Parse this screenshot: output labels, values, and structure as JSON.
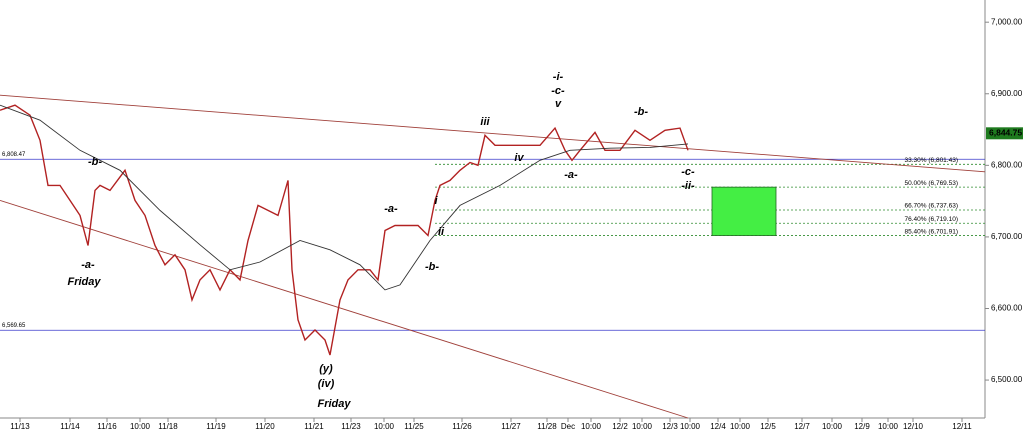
{
  "chart_data": {
    "type": "line",
    "xlim": [
      0,
      985
    ],
    "ylim": [
      6447,
      7031
    ],
    "xticks": [
      {
        "value": 20,
        "label": "11/13"
      },
      {
        "value": 70,
        "label": "11/14"
      },
      {
        "value": 107,
        "label": "11/16"
      },
      {
        "value": 140,
        "label": "10:00"
      },
      {
        "value": 168,
        "label": "11/18"
      },
      {
        "value": 216,
        "label": "11/19"
      },
      {
        "value": 265,
        "label": "11/20"
      },
      {
        "value": 314,
        "label": "11/21"
      },
      {
        "value": 351,
        "label": "11/23"
      },
      {
        "value": 384,
        "label": "10:00"
      },
      {
        "value": 414,
        "label": "11/25"
      },
      {
        "value": 462,
        "label": "11/26"
      },
      {
        "value": 511,
        "label": "11/27"
      },
      {
        "value": 547,
        "label": "11/28"
      },
      {
        "value": 568,
        "label": "Dec"
      },
      {
        "value": 591,
        "label": "10:00"
      },
      {
        "value": 620,
        "label": "12/2"
      },
      {
        "value": 642,
        "label": "10:00"
      },
      {
        "value": 670,
        "label": "12/3"
      },
      {
        "value": 690,
        "label": "10:00"
      },
      {
        "value": 718,
        "label": "12/4"
      },
      {
        "value": 740,
        "label": "10:00"
      },
      {
        "value": 768,
        "label": "12/5"
      },
      {
        "value": 802,
        "label": "12/7"
      },
      {
        "value": 832,
        "label": "10:00"
      },
      {
        "value": 862,
        "label": "12/9"
      },
      {
        "value": 888,
        "label": "10:00"
      },
      {
        "value": 913,
        "label": "12/10"
      },
      {
        "value": 962,
        "label": "12/11"
      }
    ],
    "yticks": [
      {
        "value": 6500,
        "label": "6,500.00"
      },
      {
        "value": 6600,
        "label": "6,600.00"
      },
      {
        "value": 6700,
        "label": "6,700.00"
      },
      {
        "value": 6800,
        "label": "6,800.00"
      },
      {
        "value": 6900,
        "label": "6,900.00"
      },
      {
        "value": 7000,
        "label": "7,000.00"
      }
    ],
    "series": [
      {
        "color": "#b22222",
        "x": [
          0,
          15,
          30,
          40,
          48,
          60,
          70,
          80,
          88,
          95,
          100,
          110,
          125,
          135,
          145,
          155,
          165,
          175,
          185,
          192,
          200,
          210,
          220,
          230,
          240,
          248,
          258,
          268,
          278,
          288,
          292,
          298,
          305,
          315,
          325,
          330,
          340,
          348,
          358,
          370,
          378,
          385,
          395,
          405,
          418,
          428,
          435,
          440,
          450,
          460,
          470,
          478,
          485,
          495,
          510,
          525,
          540,
          555,
          565,
          572,
          580,
          595,
          605,
          620,
          635,
          650,
          665,
          680,
          688
        ],
        "values": [
          6877,
          6884,
          6870,
          6835,
          6772,
          6772,
          6751,
          6730,
          6688,
          6765,
          6772,
          6765,
          6793,
          6751,
          6730,
          6688,
          6661,
          6675,
          6654,
          6612,
          6640,
          6654,
          6626,
          6654,
          6640,
          6695,
          6744,
          6737,
          6730,
          6779,
          6654,
          6584,
          6556,
          6570,
          6556,
          6535,
          6612,
          6640,
          6654,
          6654,
          6640,
          6709,
          6716,
          6716,
          6716,
          6702,
          6751,
          6772,
          6779,
          6793,
          6804,
          6800,
          6842,
          6828,
          6828,
          6828,
          6828,
          6852,
          6821,
          6807,
          6821,
          6846,
          6821,
          6821,
          6849,
          6835,
          6849,
          6852,
          6821
        ]
      },
      {
        "color": "#333333",
        "x": [
          0,
          40,
          80,
          120,
          160,
          200,
          230,
          260,
          300,
          330,
          360,
          385,
          400,
          430,
          460,
          500,
          540,
          570,
          610,
          650,
          688
        ],
        "values": [
          6884,
          6863,
          6821,
          6793,
          6737,
          6689,
          6654,
          6665,
          6695,
          6682,
          6661,
          6626,
          6633,
          6695,
          6744,
          6772,
          6807,
          6821,
          6824,
          6825,
          6830
        ]
      }
    ],
    "trendlines": [
      {
        "color": "#a0403a",
        "x": [
          0,
          985
        ],
        "y": [
          6898,
          6791
        ]
      },
      {
        "color": "#a0403a",
        "x": [
          0,
          688
        ],
        "y": [
          6751,
          6447
        ]
      }
    ],
    "levels": [
      {
        "value": 6808.47,
        "label": "6,808.47",
        "color": "#3a3acc"
      },
      {
        "value": 6569.65,
        "label": "6,569.65",
        "color": "#3a3acc"
      }
    ],
    "fib_levels": [
      {
        "value": 6801.43,
        "label": "33.30% (6,801.43)"
      },
      {
        "value": 6769.53,
        "label": "50.00% (6,769.53)"
      },
      {
        "value": 6737.63,
        "label": "66.70% (6,737.63)"
      },
      {
        "value": 6719.1,
        "label": "76.40% (6,719.10)"
      },
      {
        "value": 6701.91,
        "label": "85.40% (6,701.91)"
      }
    ],
    "fib_color": "#2e8b2e",
    "zone_color": "#44ee44",
    "last_price": {
      "value": 6844.75,
      "label": "6,844.75",
      "color": "#1e7a1e"
    },
    "annotations": [
      {
        "text": "-b-",
        "color": "#b22222"
      },
      {
        "text": "-a-",
        "color": "#b22222"
      },
      {
        "text": "Friday",
        "color": "#1a237e"
      },
      {
        "text": "(y)",
        "color": "#b22222"
      },
      {
        "text": "(iv)",
        "color": "#1a237e"
      },
      {
        "text": "Friday",
        "color": "#1a237e"
      },
      {
        "text": "-a-",
        "color": "#1a237e"
      },
      {
        "text": "-b-",
        "color": "#1a237e"
      },
      {
        "text": "i",
        "color": "#1a237e"
      },
      {
        "text": "ii",
        "color": "#1a237e"
      },
      {
        "text": "iii",
        "color": "#1a237e"
      },
      {
        "text": "iv",
        "color": "#1a237e"
      },
      {
        "text": "-i-",
        "color": "#1a237e"
      },
      {
        "text": "-c-",
        "color": "#1a237e"
      },
      {
        "text": "v",
        "color": "#1a237e"
      },
      {
        "text": "-a-",
        "color": "#1a237e"
      },
      {
        "text": "-b-",
        "color": "#1a237e"
      },
      {
        "text": "-c-",
        "color": "#1a237e"
      },
      {
        "text": "-ii-",
        "color": "#1a237e"
      }
    ]
  }
}
